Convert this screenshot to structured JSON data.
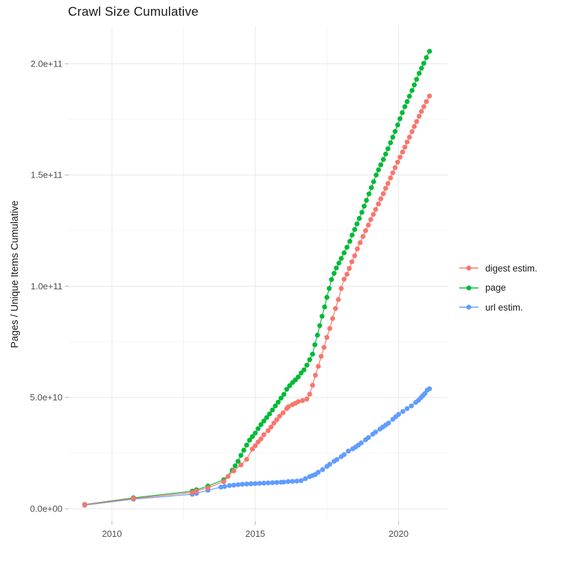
{
  "chart": {
    "title": "Crawl Size Cumulative",
    "ylabel": "Pages / Unique Items Cumulative",
    "xlabel": ""
  },
  "colors": {
    "background": "#FFFFFF",
    "grid": "#EBEBEB",
    "tick_mark": "#B8B8B8",
    "axis_text": "#4D4D4D",
    "text": "#1A1A1A",
    "digest_estim": "#F8766D",
    "page": "#00BA38",
    "url_estim": "#619CFF"
  },
  "chart_data": {
    "type": "scatter",
    "title": "Crawl Size Cumulative",
    "xlabel": "",
    "ylabel": "Pages / Unique Items Cumulative",
    "grid": true,
    "legend_position": "right",
    "x_unit": "year",
    "y_unit": "count (values stored in billions, 1 = 1e9)",
    "x_axis": {
      "range": [
        2008.49,
        2021.71
      ],
      "major_ticks": [
        2010,
        2015,
        2020
      ],
      "major_labels": [
        "2010",
        "2015",
        "2020"
      ],
      "minor_ticks": [
        2012.5,
        2017.5
      ]
    },
    "y_axis": {
      "range_e9": [
        -5.55,
        216.95
      ],
      "major_ticks_e9": [
        0,
        50,
        100,
        150,
        200
      ],
      "major_labels": [
        "0.0e+00",
        "5.0e+10",
        "1.0e+11",
        "1.5e+11",
        "2.0e+11"
      ],
      "minor_ticks_e9": [
        25,
        75,
        125,
        175
      ]
    },
    "series": [
      {
        "name": "digest estim.",
        "slug": "digest-estim",
        "color": "#F8766D",
        "points": [
          [
            2009.05,
            1.8
          ],
          [
            2010.75,
            4.6
          ],
          [
            2012.8,
            7.3
          ],
          [
            2012.95,
            8.0
          ],
          [
            2013.35,
            9.4
          ],
          [
            2013.9,
            12.2
          ],
          [
            2014.05,
            14.5
          ],
          [
            2014.25,
            17.0
          ],
          [
            2014.5,
            19.7
          ],
          [
            2014.7,
            22.2
          ],
          [
            2014.9,
            26.8
          ],
          [
            2015.0,
            28.3
          ],
          [
            2015.1,
            30.0
          ],
          [
            2015.2,
            31.4
          ],
          [
            2015.3,
            33.3
          ],
          [
            2015.45,
            35.1
          ],
          [
            2015.55,
            36.7
          ],
          [
            2015.65,
            38.5
          ],
          [
            2015.75,
            40.0
          ],
          [
            2015.85,
            41.6
          ],
          [
            2015.97,
            43.1
          ],
          [
            2016.1,
            45.0
          ],
          [
            2016.16,
            45.9
          ],
          [
            2016.3,
            46.8
          ],
          [
            2016.4,
            47.4
          ],
          [
            2016.5,
            48.1
          ],
          [
            2016.65,
            48.6
          ],
          [
            2016.8,
            49.3
          ],
          [
            2016.9,
            51.5
          ],
          [
            2017.0,
            55.5
          ],
          [
            2017.1,
            60.0
          ],
          [
            2017.2,
            64.0
          ],
          [
            2017.3,
            68.5
          ],
          [
            2017.4,
            72.5
          ],
          [
            2017.5,
            77.0
          ],
          [
            2017.6,
            81.0
          ],
          [
            2017.7,
            85.5
          ],
          [
            2017.8,
            90.0
          ],
          [
            2017.9,
            94.0
          ],
          [
            2018.0,
            99.0
          ],
          [
            2018.1,
            103.2
          ],
          [
            2018.2,
            105.4
          ],
          [
            2018.28,
            108.0
          ],
          [
            2018.37,
            111.0
          ],
          [
            2018.47,
            113.7
          ],
          [
            2018.56,
            116.8
          ],
          [
            2018.66,
            119.6
          ],
          [
            2018.76,
            122.4
          ],
          [
            2018.85,
            125.0
          ],
          [
            2018.95,
            127.5
          ],
          [
            2019.03,
            130.0
          ],
          [
            2019.12,
            132.3
          ],
          [
            2019.2,
            134.5
          ],
          [
            2019.3,
            137.0
          ],
          [
            2019.38,
            139.3
          ],
          [
            2019.47,
            141.6
          ],
          [
            2019.55,
            144.0
          ],
          [
            2019.63,
            146.2
          ],
          [
            2019.72,
            148.7
          ],
          [
            2019.8,
            151.0
          ],
          [
            2019.88,
            153.3
          ],
          [
            2019.97,
            155.8
          ],
          [
            2020.05,
            158.0
          ],
          [
            2020.14,
            160.3
          ],
          [
            2020.22,
            162.5
          ],
          [
            2020.3,
            164.8
          ],
          [
            2020.38,
            167.0
          ],
          [
            2020.47,
            169.5
          ],
          [
            2020.55,
            171.8
          ],
          [
            2020.63,
            174.0
          ],
          [
            2020.72,
            176.4
          ],
          [
            2020.8,
            178.6
          ],
          [
            2020.88,
            180.7
          ],
          [
            2020.97,
            183.0
          ],
          [
            2021.08,
            185.5
          ]
        ]
      },
      {
        "name": "page",
        "slug": "page",
        "color": "#00BA38",
        "points": [
          [
            2009.05,
            1.9
          ],
          [
            2010.75,
            4.9
          ],
          [
            2012.8,
            7.9
          ],
          [
            2012.95,
            8.5
          ],
          [
            2013.35,
            10.2
          ],
          [
            2013.9,
            13.0
          ],
          [
            2014.2,
            17.3
          ],
          [
            2014.3,
            19.3
          ],
          [
            2014.4,
            21.3
          ],
          [
            2014.5,
            24.0
          ],
          [
            2014.6,
            26.3
          ],
          [
            2014.7,
            28.6
          ],
          [
            2014.8,
            30.8
          ],
          [
            2014.9,
            32.4
          ],
          [
            2015.0,
            34.0
          ],
          [
            2015.1,
            36.0
          ],
          [
            2015.2,
            37.8
          ],
          [
            2015.3,
            39.4
          ],
          [
            2015.4,
            41.0
          ],
          [
            2015.5,
            42.6
          ],
          [
            2015.6,
            44.4
          ],
          [
            2015.7,
            46.2
          ],
          [
            2015.8,
            47.9
          ],
          [
            2015.9,
            49.7
          ],
          [
            2016.0,
            51.4
          ],
          [
            2016.1,
            53.7
          ],
          [
            2016.2,
            55.3
          ],
          [
            2016.3,
            56.7
          ],
          [
            2016.4,
            57.9
          ],
          [
            2016.5,
            59.2
          ],
          [
            2016.6,
            61.0
          ],
          [
            2016.7,
            62.4
          ],
          [
            2016.8,
            64.5
          ],
          [
            2016.9,
            67.0
          ],
          [
            2017.0,
            69.5
          ],
          [
            2017.08,
            73.7
          ],
          [
            2017.17,
            78.0
          ],
          [
            2017.25,
            82.3
          ],
          [
            2017.33,
            86.5
          ],
          [
            2017.42,
            90.7
          ],
          [
            2017.5,
            95.0
          ],
          [
            2017.58,
            99.0
          ],
          [
            2017.66,
            103.0
          ],
          [
            2017.75,
            105.8
          ],
          [
            2017.83,
            108.2
          ],
          [
            2017.92,
            110.4
          ],
          [
            2018.0,
            112.5
          ],
          [
            2018.1,
            115.0
          ],
          [
            2018.2,
            117.5
          ],
          [
            2018.3,
            120.2
          ],
          [
            2018.38,
            123.0
          ],
          [
            2018.47,
            125.5
          ],
          [
            2018.55,
            128.0
          ],
          [
            2018.63,
            130.5
          ],
          [
            2018.72,
            133.2
          ],
          [
            2018.8,
            136.0
          ],
          [
            2018.88,
            138.6
          ],
          [
            2018.97,
            141.5
          ],
          [
            2019.05,
            144.3
          ],
          [
            2019.13,
            147.0
          ],
          [
            2019.22,
            150.0
          ],
          [
            2019.3,
            152.3
          ],
          [
            2019.38,
            154.6
          ],
          [
            2019.47,
            157.0
          ],
          [
            2019.55,
            159.4
          ],
          [
            2019.63,
            161.8
          ],
          [
            2019.72,
            164.5
          ],
          [
            2019.8,
            167.0
          ],
          [
            2019.88,
            169.6
          ],
          [
            2019.97,
            172.5
          ],
          [
            2020.05,
            175.3
          ],
          [
            2020.13,
            178.0
          ],
          [
            2020.22,
            180.7
          ],
          [
            2020.3,
            183.0
          ],
          [
            2020.38,
            185.4
          ],
          [
            2020.47,
            188.0
          ],
          [
            2020.55,
            190.5
          ],
          [
            2020.63,
            193.0
          ],
          [
            2020.72,
            195.7
          ],
          [
            2020.8,
            198.0
          ],
          [
            2020.88,
            200.2
          ],
          [
            2020.97,
            202.8
          ],
          [
            2021.08,
            205.6
          ]
        ]
      },
      {
        "name": "url estim.",
        "slug": "url-estim",
        "color": "#619CFF",
        "points": [
          [
            2009.05,
            1.6
          ],
          [
            2010.75,
            4.3
          ],
          [
            2012.8,
            6.5
          ],
          [
            2012.95,
            6.9
          ],
          [
            2013.35,
            8.3
          ],
          [
            2013.8,
            9.7
          ],
          [
            2013.93,
            10.0
          ],
          [
            2014.1,
            10.4
          ],
          [
            2014.25,
            10.6
          ],
          [
            2014.4,
            10.8
          ],
          [
            2014.55,
            11.0
          ],
          [
            2014.7,
            11.1
          ],
          [
            2014.85,
            11.2
          ],
          [
            2015.0,
            11.3
          ],
          [
            2015.15,
            11.4
          ],
          [
            2015.3,
            11.5
          ],
          [
            2015.45,
            11.6
          ],
          [
            2015.6,
            11.7
          ],
          [
            2015.75,
            11.8
          ],
          [
            2015.9,
            11.9
          ],
          [
            2016.0,
            12.0
          ],
          [
            2016.15,
            12.2
          ],
          [
            2016.3,
            12.3
          ],
          [
            2016.45,
            12.4
          ],
          [
            2016.6,
            12.6
          ],
          [
            2016.75,
            13.5
          ],
          [
            2016.9,
            14.4
          ],
          [
            2017.0,
            14.9
          ],
          [
            2017.1,
            15.4
          ],
          [
            2017.2,
            16.4
          ],
          [
            2017.35,
            17.6
          ],
          [
            2017.5,
            19.0
          ],
          [
            2017.6,
            20.0
          ],
          [
            2017.75,
            21.3
          ],
          [
            2017.85,
            22.1
          ],
          [
            2018.0,
            23.4
          ],
          [
            2018.1,
            24.3
          ],
          [
            2018.25,
            25.9
          ],
          [
            2018.4,
            26.9
          ],
          [
            2018.5,
            27.7
          ],
          [
            2018.6,
            28.6
          ],
          [
            2018.7,
            29.6
          ],
          [
            2018.85,
            31.0
          ],
          [
            2018.95,
            32.0
          ],
          [
            2019.1,
            33.5
          ],
          [
            2019.2,
            34.5
          ],
          [
            2019.35,
            35.8
          ],
          [
            2019.45,
            36.7
          ],
          [
            2019.55,
            37.6
          ],
          [
            2019.65,
            38.5
          ],
          [
            2019.8,
            40.2
          ],
          [
            2019.9,
            41.3
          ],
          [
            2020.0,
            42.4
          ],
          [
            2020.15,
            43.7
          ],
          [
            2020.3,
            45.0
          ],
          [
            2020.45,
            46.2
          ],
          [
            2020.6,
            47.8
          ],
          [
            2020.7,
            48.8
          ],
          [
            2020.78,
            49.9
          ],
          [
            2020.85,
            50.9
          ],
          [
            2020.92,
            51.8
          ],
          [
            2021.0,
            53.3
          ],
          [
            2021.08,
            53.9
          ]
        ]
      }
    ]
  }
}
